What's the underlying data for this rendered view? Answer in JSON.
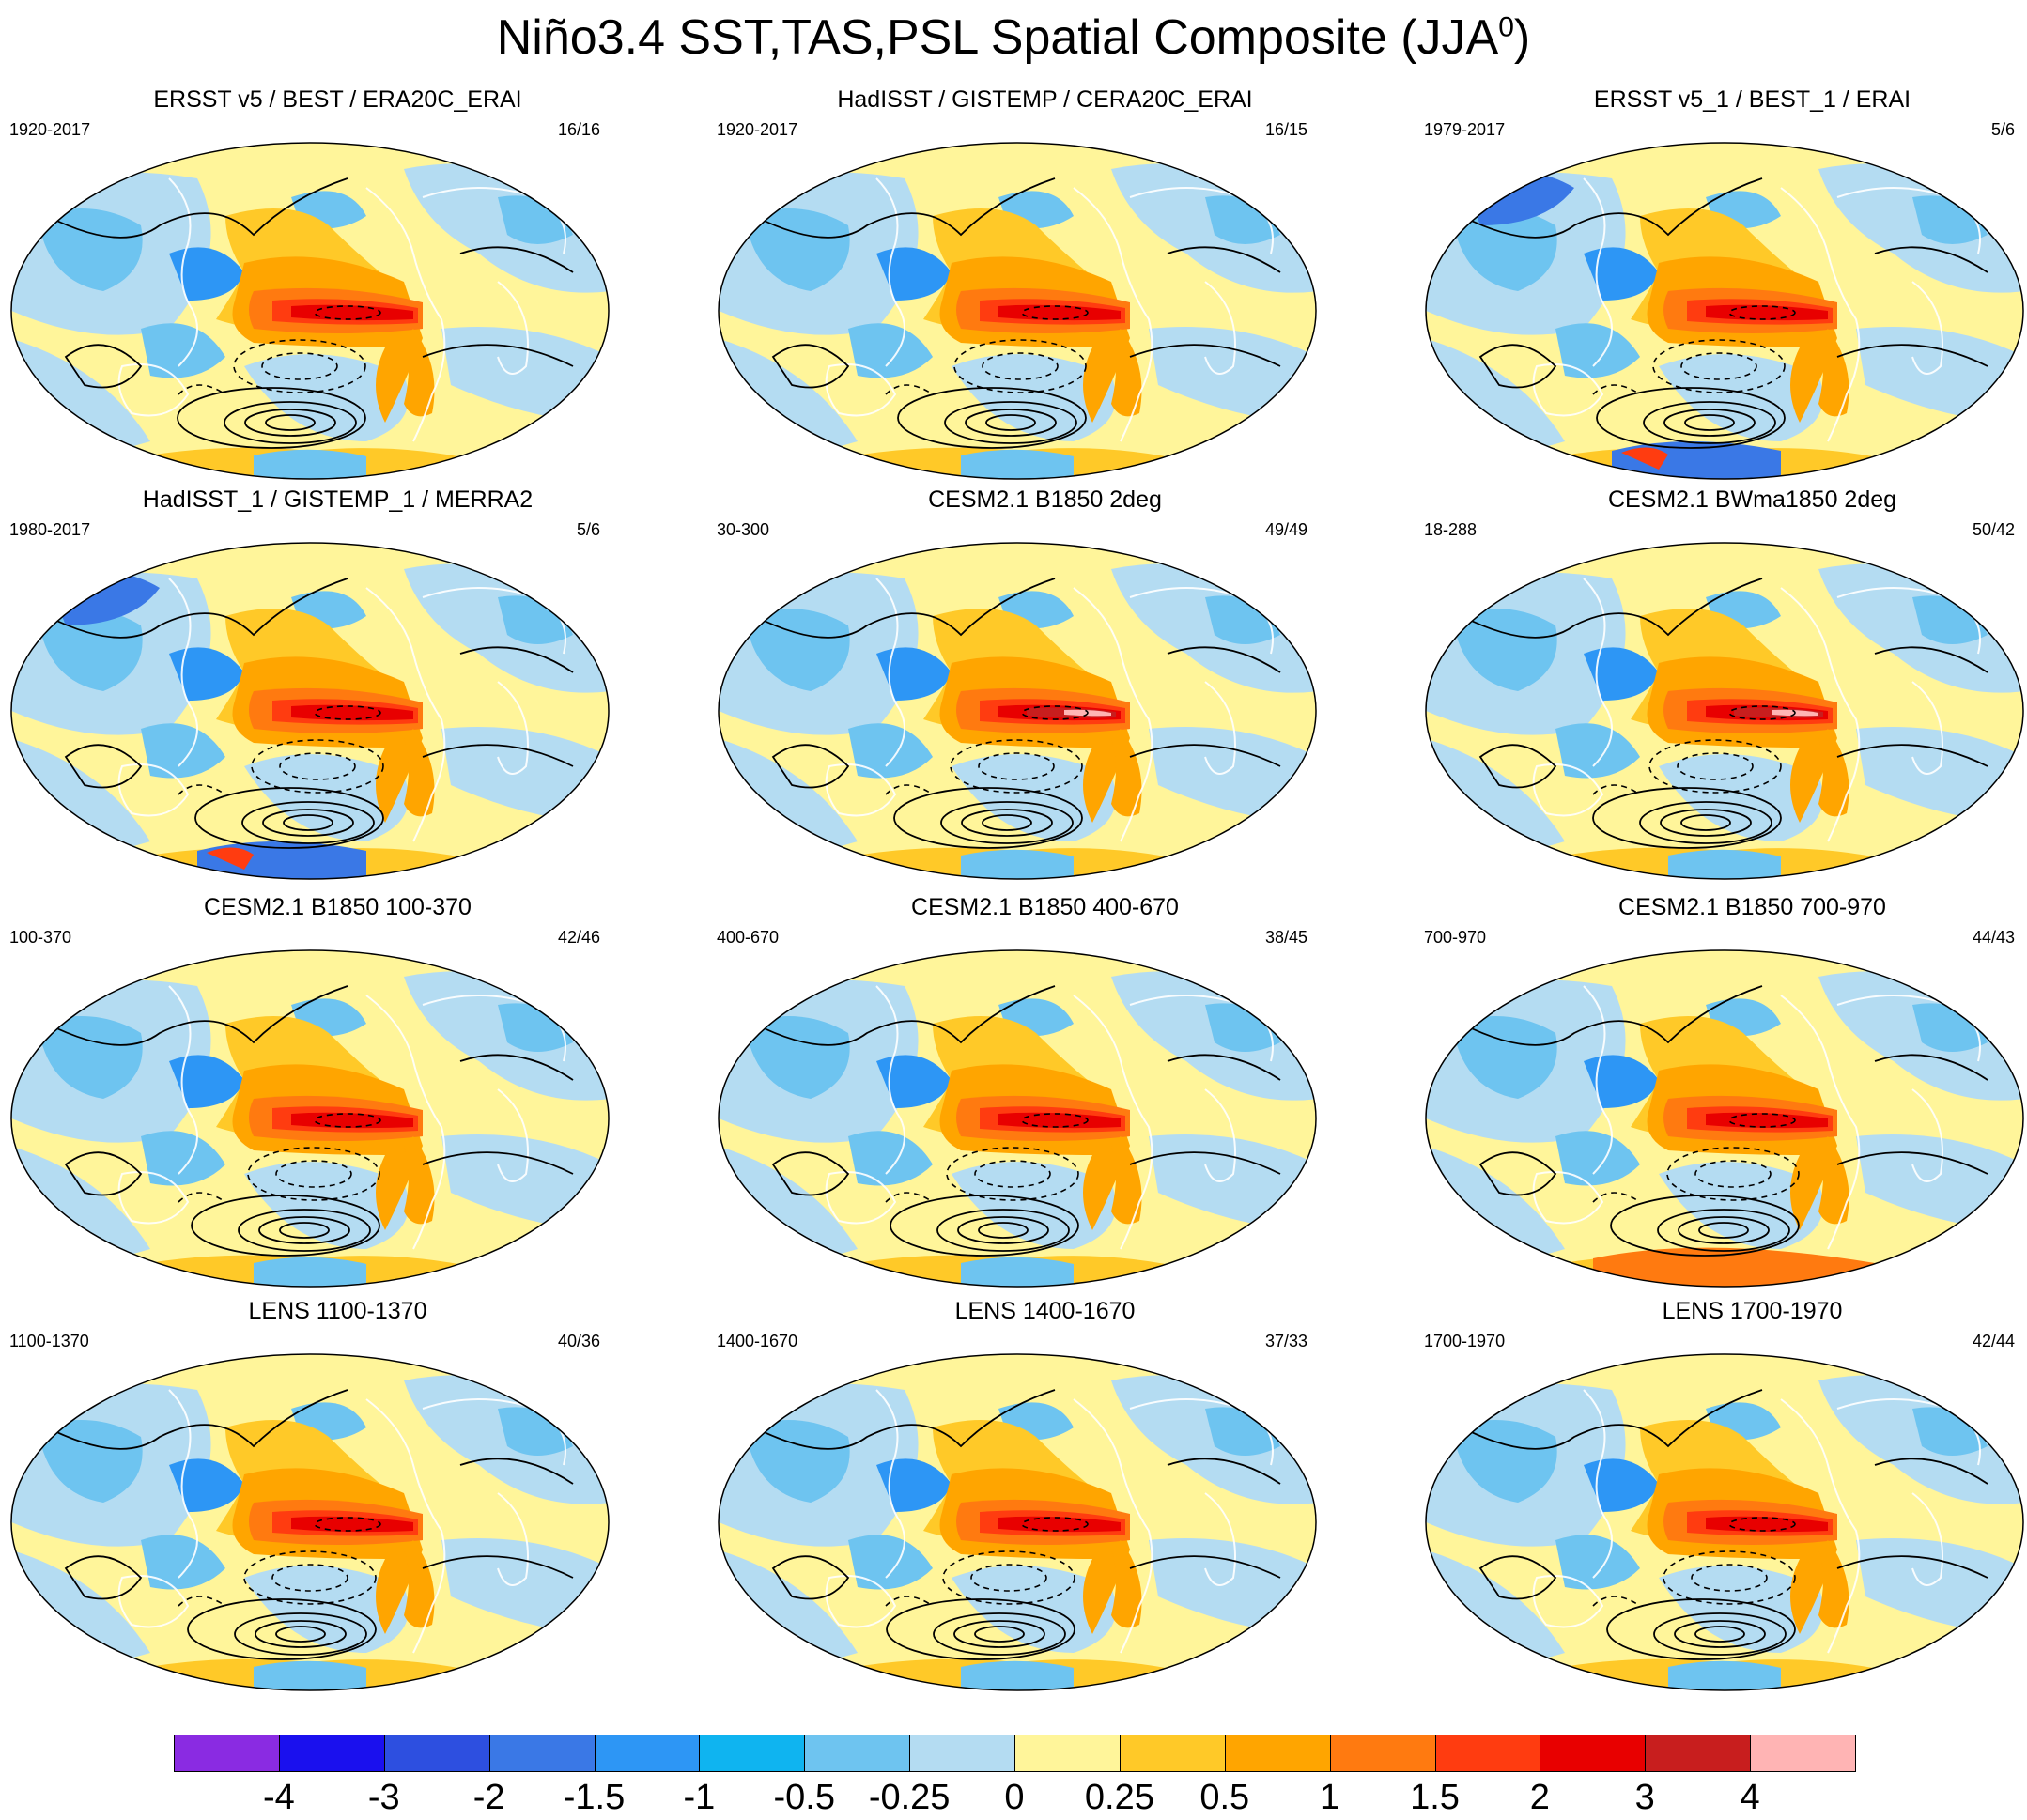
{
  "figure": {
    "title": "Niño3.4 SST,TAS,PSL Spatial Composite (JJA",
    "title_superscript": "0",
    "title_close": ")"
  },
  "panels": [
    {
      "title": "ERSST v5 / BEST / ERA20C_ERAI",
      "years": "1920-2017",
      "count": "16/16"
    },
    {
      "title": "HadISST / GISTEMP / CERA20C_ERAI",
      "years": "1920-2017",
      "count": "16/15"
    },
    {
      "title": "ERSST v5_1 / BEST_1 / ERAI",
      "years": "1979-2017",
      "count": "5/6"
    },
    {
      "title": "HadISST_1 / GISTEMP_1 / MERRA2",
      "years": "1980-2017",
      "count": "5/6"
    },
    {
      "title": "CESM2.1 B1850 2deg",
      "years": "30-300",
      "count": "49/49"
    },
    {
      "title": "CESM2.1 BWma1850 2deg",
      "years": "18-288",
      "count": "50/42"
    },
    {
      "title": "CESM2.1 B1850 100-370",
      "years": "100-370",
      "count": "42/46"
    },
    {
      "title": "CESM2.1 B1850 400-670",
      "years": "400-670",
      "count": "38/45"
    },
    {
      "title": "CESM2.1 B1850 700-970",
      "years": "700-970",
      "count": "44/43"
    },
    {
      "title": "LENS 1100-1370",
      "years": "1100-1370",
      "count": "40/36"
    },
    {
      "title": "LENS 1400-1670",
      "years": "1400-1670",
      "count": "37/33"
    },
    {
      "title": "LENS 1700-1970",
      "years": "1700-1970",
      "count": "42/44"
    }
  ],
  "colorbar": {
    "labels": [
      "-4",
      "-3",
      "-2",
      "-1.5",
      "-1",
      "-0.5",
      "-0.25",
      "0",
      "0.25",
      "0.5",
      "1",
      "1.5",
      "2",
      "3",
      "4"
    ],
    "colors": [
      "#8a2be2",
      "#1a10ee",
      "#2d4fe0",
      "#3a78e6",
      "#2d96f5",
      "#0fb4f0",
      "#6ec4f0",
      "#b4dcf2",
      "#fff59a",
      "#ffc928",
      "#ffa500",
      "#ff7a10",
      "#ff3c10",
      "#e80000",
      "#c81e1e",
      "#ffb4b4"
    ]
  }
}
